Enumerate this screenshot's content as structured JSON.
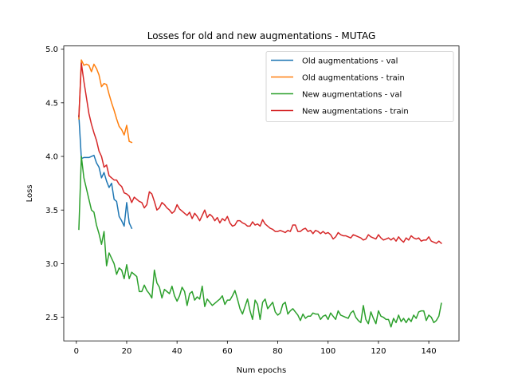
{
  "chart_data": {
    "type": "line",
    "title": "Losses for old and new augmentations - MUTAG",
    "xlabel": "Num epochs",
    "ylabel": "Loss",
    "xlim": [
      -5,
      152
    ],
    "ylim": [
      2.28,
      5.03
    ],
    "xticks": [
      0,
      20,
      40,
      60,
      80,
      100,
      120,
      140
    ],
    "yticks": [
      2.5,
      3.0,
      3.5,
      4.0,
      4.5,
      5.0
    ],
    "xtick_labels": [
      "0",
      "20",
      "40",
      "60",
      "80",
      "100",
      "120",
      "140"
    ],
    "ytick_labels": [
      "2.5",
      "3.0",
      "3.5",
      "4.0",
      "4.5",
      "5.0"
    ],
    "grid": false,
    "legend_position": "top-right",
    "series": [
      {
        "name": "Old augmentations - val",
        "color": "#1f77b4",
        "x": [
          1,
          2,
          3,
          4,
          5,
          6,
          7,
          8,
          9,
          10,
          11,
          12,
          13,
          14,
          15,
          16,
          17,
          18,
          19,
          20,
          21,
          22
        ],
        "y": [
          4.38,
          3.98,
          3.99,
          3.99,
          3.99,
          4.0,
          4.01,
          3.94,
          3.9,
          3.8,
          3.85,
          3.77,
          3.71,
          3.75,
          3.6,
          3.58,
          3.44,
          3.4,
          3.35,
          3.57,
          3.38,
          3.33
        ]
      },
      {
        "name": "Old augmentations - train",
        "color": "#ff7f0e",
        "x": [
          1,
          2,
          3,
          4,
          5,
          6,
          7,
          8,
          9,
          10,
          11,
          12,
          13,
          14,
          15,
          16,
          17,
          18,
          19,
          20,
          21,
          22
        ],
        "y": [
          4.35,
          4.9,
          4.85,
          4.86,
          4.85,
          4.79,
          4.86,
          4.82,
          4.76,
          4.65,
          4.68,
          4.67,
          4.58,
          4.5,
          4.43,
          4.35,
          4.28,
          4.25,
          4.2,
          4.29,
          4.14,
          4.13
        ]
      },
      {
        "name": "New augmentations - val",
        "color": "#2ca02c",
        "x": [
          1,
          2,
          3,
          4,
          5,
          6,
          7,
          8,
          9,
          10,
          11,
          12,
          13,
          14,
          15,
          16,
          17,
          18,
          19,
          20,
          21,
          22,
          23,
          24,
          25,
          26,
          27,
          28,
          29,
          30,
          31,
          32,
          33,
          34,
          35,
          36,
          37,
          38,
          39,
          40,
          41,
          42,
          43,
          44,
          45,
          46,
          47,
          48,
          49,
          50,
          51,
          52,
          53,
          54,
          55,
          56,
          57,
          58,
          59,
          60,
          61,
          62,
          63,
          64,
          65,
          66,
          67,
          68,
          69,
          70,
          71,
          72,
          73,
          74,
          75,
          76,
          77,
          78,
          79,
          80,
          81,
          82,
          83,
          84,
          85,
          86,
          87,
          88,
          89,
          90,
          91,
          92,
          93,
          94,
          95,
          96,
          97,
          98,
          99,
          100,
          101,
          102,
          103,
          104,
          105,
          106,
          107,
          108,
          109,
          110,
          111,
          112,
          113,
          114,
          115,
          116,
          117,
          118,
          119,
          120,
          121,
          122,
          123,
          124,
          125,
          126,
          127,
          128,
          129,
          130,
          131,
          132,
          133,
          134,
          135,
          136,
          137,
          138,
          139,
          140,
          141,
          142,
          143,
          144,
          145
        ],
        "y": [
          3.32,
          4.0,
          3.8,
          3.7,
          3.6,
          3.5,
          3.48,
          3.36,
          3.28,
          3.18,
          3.3,
          2.98,
          3.1,
          3.05,
          3.0,
          2.9,
          2.96,
          2.94,
          2.86,
          2.99,
          2.86,
          2.92,
          2.9,
          2.88,
          2.74,
          2.74,
          2.8,
          2.75,
          2.72,
          2.68,
          2.94,
          2.82,
          2.78,
          2.68,
          2.76,
          2.74,
          2.72,
          2.79,
          2.7,
          2.65,
          2.7,
          2.78,
          2.74,
          2.61,
          2.72,
          2.74,
          2.66,
          2.69,
          2.67,
          2.79,
          2.6,
          2.67,
          2.64,
          2.61,
          2.63,
          2.65,
          2.67,
          2.7,
          2.62,
          2.66,
          2.66,
          2.7,
          2.75,
          2.67,
          2.58,
          2.53,
          2.6,
          2.67,
          2.56,
          2.48,
          2.66,
          2.62,
          2.48,
          2.64,
          2.67,
          2.58,
          2.61,
          2.64,
          2.55,
          2.52,
          2.54,
          2.62,
          2.64,
          2.53,
          2.56,
          2.58,
          2.55,
          2.52,
          2.47,
          2.53,
          2.49,
          2.51,
          2.51,
          2.54,
          2.53,
          2.53,
          2.48,
          2.51,
          2.52,
          2.48,
          2.54,
          2.51,
          2.48,
          2.56,
          2.52,
          2.51,
          2.5,
          2.49,
          2.54,
          2.56,
          2.5,
          2.47,
          2.45,
          2.61,
          2.48,
          2.44,
          2.55,
          2.49,
          2.44,
          2.56,
          2.51,
          2.5,
          2.48,
          2.48,
          2.41,
          2.49,
          2.45,
          2.52,
          2.46,
          2.49,
          2.45,
          2.49,
          2.46,
          2.52,
          2.49,
          2.55,
          2.56,
          2.56,
          2.47,
          2.52,
          2.5,
          2.45,
          2.47,
          2.51,
          2.63
        ]
      },
      {
        "name": "New augmentations - train",
        "color": "#d62728",
        "x": [
          1,
          2,
          3,
          4,
          5,
          6,
          7,
          8,
          9,
          10,
          11,
          12,
          13,
          14,
          15,
          16,
          17,
          18,
          19,
          20,
          21,
          22,
          23,
          24,
          25,
          26,
          27,
          28,
          29,
          30,
          31,
          32,
          33,
          34,
          35,
          36,
          37,
          38,
          39,
          40,
          41,
          42,
          43,
          44,
          45,
          46,
          47,
          48,
          49,
          50,
          51,
          52,
          53,
          54,
          55,
          56,
          57,
          58,
          59,
          60,
          61,
          62,
          63,
          64,
          65,
          66,
          67,
          68,
          69,
          70,
          71,
          72,
          73,
          74,
          75,
          76,
          77,
          78,
          79,
          80,
          81,
          82,
          83,
          84,
          85,
          86,
          87,
          88,
          89,
          90,
          91,
          92,
          93,
          94,
          95,
          96,
          97,
          98,
          99,
          100,
          101,
          102,
          103,
          104,
          105,
          106,
          107,
          108,
          109,
          110,
          111,
          112,
          113,
          114,
          115,
          116,
          117,
          118,
          119,
          120,
          121,
          122,
          123,
          124,
          125,
          126,
          127,
          128,
          129,
          130,
          131,
          132,
          133,
          134,
          135,
          136,
          137,
          138,
          139,
          140,
          141,
          142,
          143,
          144,
          145
        ],
        "y": [
          4.37,
          4.87,
          4.7,
          4.55,
          4.4,
          4.3,
          4.22,
          4.15,
          4.05,
          4.0,
          3.9,
          3.92,
          3.82,
          3.8,
          3.78,
          3.78,
          3.74,
          3.72,
          3.66,
          3.65,
          3.63,
          3.57,
          3.62,
          3.6,
          3.58,
          3.57,
          3.52,
          3.55,
          3.67,
          3.65,
          3.58,
          3.5,
          3.52,
          3.57,
          3.55,
          3.52,
          3.5,
          3.47,
          3.49,
          3.55,
          3.51,
          3.49,
          3.47,
          3.45,
          3.48,
          3.42,
          3.47,
          3.44,
          3.4,
          3.45,
          3.5,
          3.43,
          3.46,
          3.44,
          3.4,
          3.43,
          3.38,
          3.42,
          3.4,
          3.44,
          3.38,
          3.35,
          3.36,
          3.4,
          3.4,
          3.38,
          3.37,
          3.35,
          3.35,
          3.39,
          3.36,
          3.37,
          3.35,
          3.41,
          3.37,
          3.35,
          3.33,
          3.32,
          3.3,
          3.3,
          3.31,
          3.3,
          3.29,
          3.31,
          3.3,
          3.36,
          3.36,
          3.3,
          3.3,
          3.32,
          3.33,
          3.3,
          3.31,
          3.28,
          3.31,
          3.3,
          3.28,
          3.3,
          3.28,
          3.29,
          3.27,
          3.23,
          3.25,
          3.29,
          3.27,
          3.26,
          3.26,
          3.25,
          3.24,
          3.27,
          3.26,
          3.25,
          3.24,
          3.22,
          3.23,
          3.27,
          3.25,
          3.24,
          3.23,
          3.27,
          3.24,
          3.22,
          3.23,
          3.24,
          3.22,
          3.24,
          3.21,
          3.25,
          3.22,
          3.2,
          3.24,
          3.22,
          3.26,
          3.24,
          3.23,
          3.24,
          3.21,
          3.22,
          3.22,
          3.25,
          3.21,
          3.2,
          3.19,
          3.21,
          3.19
        ]
      }
    ]
  }
}
